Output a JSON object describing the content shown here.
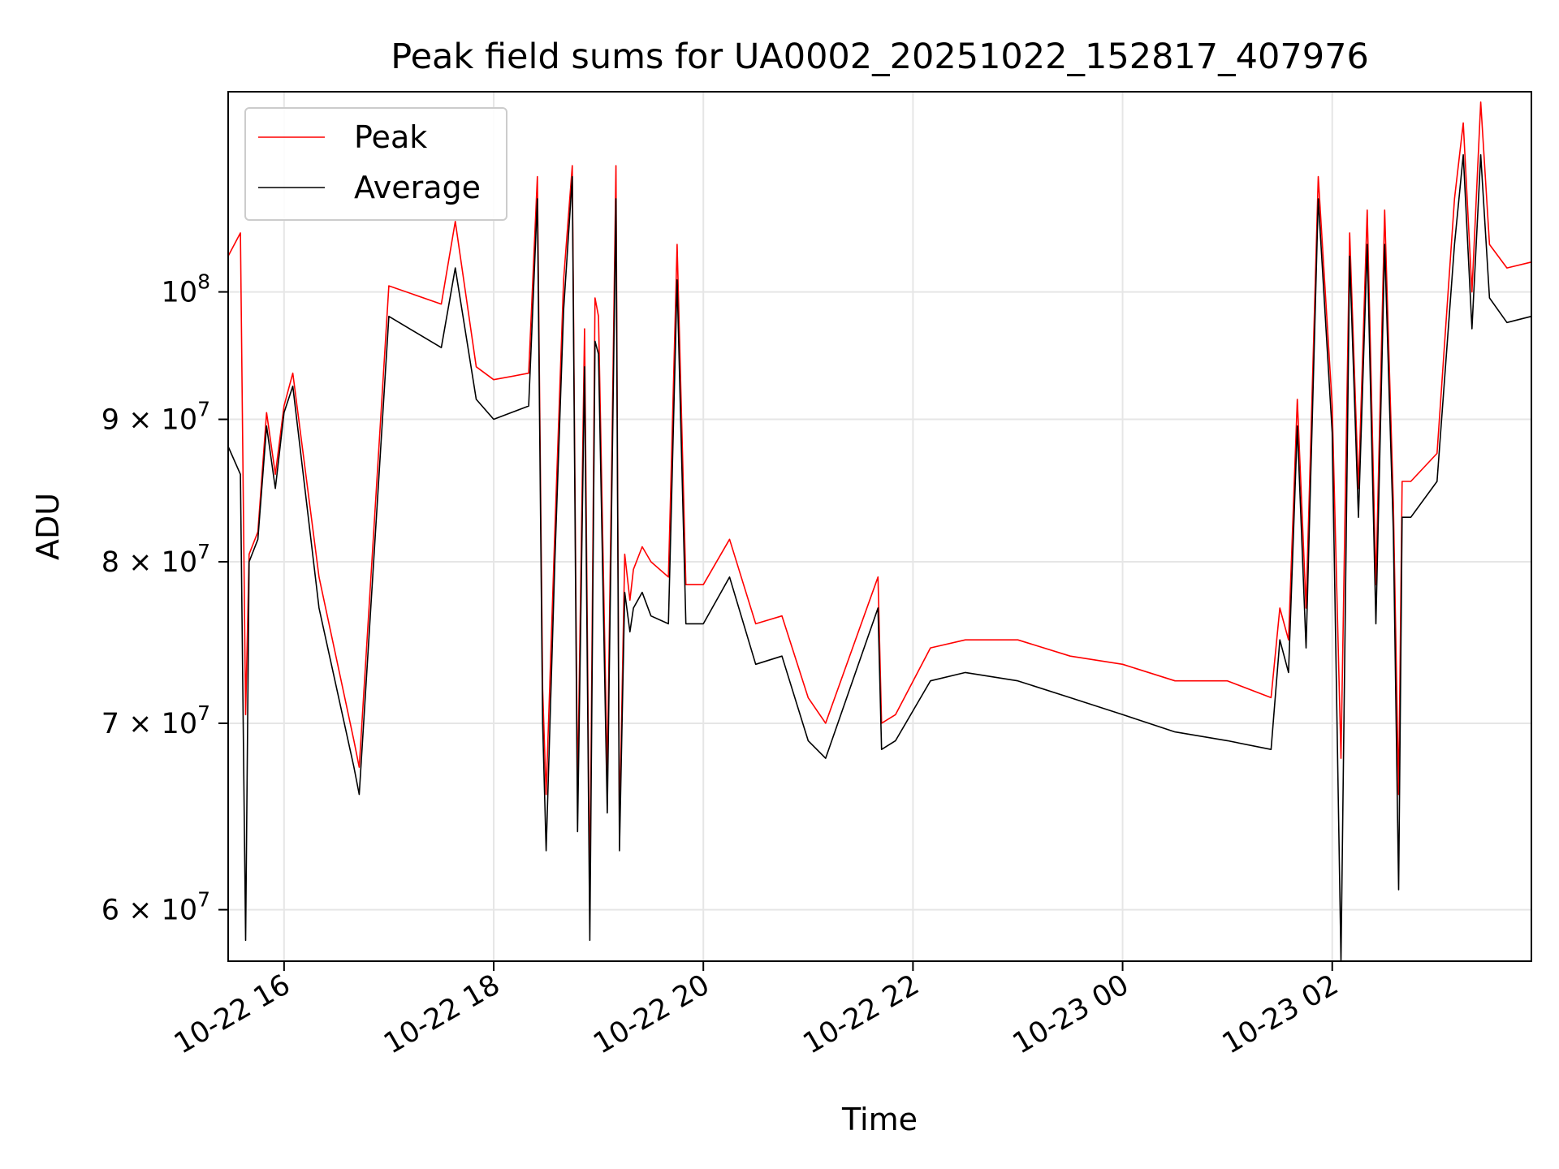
{
  "chart_data": {
    "type": "line",
    "title": "Peak field sums for UA0002_20251022_152817_407976",
    "xlabel": "Time",
    "ylabel": "ADU",
    "yscale": "log",
    "xlim": [
      "2025-10-22 15:28",
      "2025-10-23 03:54"
    ],
    "ylim": [
      57500000,
      118000000
    ],
    "grid": true,
    "legend_position": "top-left",
    "x_ticks": [
      "10-22 16",
      "10-22 18",
      "10-22 20",
      "10-22 22",
      "10-23 00",
      "10-23 02"
    ],
    "x_tick_times": [
      "2025-10-22 16:00",
      "2025-10-22 18:00",
      "2025-10-22 20:00",
      "2025-10-22 22:00",
      "2025-10-23 00:00",
      "2025-10-23 02:00"
    ],
    "y_ticks": [
      {
        "value": 60000000,
        "mantissa": "6",
        "exp": "7"
      },
      {
        "value": 70000000,
        "mantissa": "7",
        "exp": "7"
      },
      {
        "value": 80000000,
        "mantissa": "8",
        "exp": "7"
      },
      {
        "value": 90000000,
        "mantissa": "9",
        "exp": "7"
      },
      {
        "value": 100000000,
        "mantissa": "",
        "exp": "8"
      }
    ],
    "series": [
      {
        "name": "Peak",
        "color": "#ff0000",
        "x": [
          "2025-10-22 15:28",
          "2025-10-22 15:35",
          "2025-10-22 15:38",
          "2025-10-22 15:40",
          "2025-10-22 15:45",
          "2025-10-22 15:50",
          "2025-10-22 15:55",
          "2025-10-22 16:00",
          "2025-10-22 16:05",
          "2025-10-22 16:20",
          "2025-10-22 16:40",
          "2025-10-22 16:43",
          "2025-10-22 17:00",
          "2025-10-22 17:30",
          "2025-10-22 17:38",
          "2025-10-22 17:50",
          "2025-10-22 18:00",
          "2025-10-22 18:20",
          "2025-10-22 18:25",
          "2025-10-22 18:28",
          "2025-10-22 18:30",
          "2025-10-22 18:35",
          "2025-10-22 18:40",
          "2025-10-22 18:45",
          "2025-10-22 18:48",
          "2025-10-22 18:52",
          "2025-10-22 18:55",
          "2025-10-22 18:58",
          "2025-10-22 19:00",
          "2025-10-22 19:05",
          "2025-10-22 19:10",
          "2025-10-22 19:12",
          "2025-10-22 19:15",
          "2025-10-22 19:18",
          "2025-10-22 19:20",
          "2025-10-22 19:25",
          "2025-10-22 19:30",
          "2025-10-22 19:40",
          "2025-10-22 19:45",
          "2025-10-22 19:50",
          "2025-10-22 20:00",
          "2025-10-22 20:15",
          "2025-10-22 20:30",
          "2025-10-22 20:45",
          "2025-10-22 21:00",
          "2025-10-22 21:10",
          "2025-10-22 21:40",
          "2025-10-22 21:42",
          "2025-10-22 21:50",
          "2025-10-22 22:10",
          "2025-10-22 22:30",
          "2025-10-22 23:00",
          "2025-10-22 23:30",
          "2025-10-23 00:00",
          "2025-10-23 00:30",
          "2025-10-23 01:00",
          "2025-10-23 01:25",
          "2025-10-23 01:30",
          "2025-10-23 01:35",
          "2025-10-23 01:40",
          "2025-10-23 01:45",
          "2025-10-23 01:52",
          "2025-10-23 02:00",
          "2025-10-23 02:05",
          "2025-10-23 02:10",
          "2025-10-23 02:15",
          "2025-10-23 02:20",
          "2025-10-23 02:25",
          "2025-10-23 02:30",
          "2025-10-23 02:35",
          "2025-10-23 02:38",
          "2025-10-23 02:40",
          "2025-10-23 02:45",
          "2025-10-23 03:00",
          "2025-10-23 03:10",
          "2025-10-23 03:15",
          "2025-10-23 03:20",
          "2025-10-23 03:25",
          "2025-10-23 03:30",
          "2025-10-23 03:40",
          "2025-10-23 03:54"
        ],
        "y": [
          103000000,
          105000000,
          70500000,
          80500000,
          82000000,
          90500000,
          86000000,
          91000000,
          93500000,
          79000000,
          69000000,
          67500000,
          100500000,
          99000000,
          106000000,
          94000000,
          93000000,
          93500000,
          110000000,
          72000000,
          66000000,
          82000000,
          101000000,
          111000000,
          66000000,
          97000000,
          60500000,
          99500000,
          98000000,
          67000000,
          111000000,
          64000000,
          80500000,
          77500000,
          79500000,
          81000000,
          80000000,
          79000000,
          104000000,
          78500000,
          78500000,
          81500000,
          76000000,
          76500000,
          71500000,
          70000000,
          79000000,
          70000000,
          70500000,
          74500000,
          75000000,
          75000000,
          74000000,
          73500000,
          72500000,
          72500000,
          71500000,
          77000000,
          75000000,
          91500000,
          77000000,
          110000000,
          91000000,
          68000000,
          105000000,
          85000000,
          107000000,
          78500000,
          107000000,
          84000000,
          66000000,
          85500000,
          85500000,
          87500000,
          108000000,
          115000000,
          100000000,
          117000000,
          104000000,
          102000000,
          102500000
        ]
      },
      {
        "name": "Average",
        "color": "#000000",
        "x": [
          "2025-10-22 15:28",
          "2025-10-22 15:35",
          "2025-10-22 15:38",
          "2025-10-22 15:40",
          "2025-10-22 15:45",
          "2025-10-22 15:50",
          "2025-10-22 15:55",
          "2025-10-22 16:00",
          "2025-10-22 16:05",
          "2025-10-22 16:20",
          "2025-10-22 16:40",
          "2025-10-22 16:43",
          "2025-10-22 17:00",
          "2025-10-22 17:30",
          "2025-10-22 17:38",
          "2025-10-22 17:50",
          "2025-10-22 18:00",
          "2025-10-22 18:20",
          "2025-10-22 18:25",
          "2025-10-22 18:28",
          "2025-10-22 18:30",
          "2025-10-22 18:35",
          "2025-10-22 18:40",
          "2025-10-22 18:45",
          "2025-10-22 18:48",
          "2025-10-22 18:52",
          "2025-10-22 18:55",
          "2025-10-22 18:58",
          "2025-10-22 19:00",
          "2025-10-22 19:05",
          "2025-10-22 19:10",
          "2025-10-22 19:12",
          "2025-10-22 19:15",
          "2025-10-22 19:18",
          "2025-10-22 19:20",
          "2025-10-22 19:25",
          "2025-10-22 19:30",
          "2025-10-22 19:40",
          "2025-10-22 19:45",
          "2025-10-22 19:50",
          "2025-10-22 20:00",
          "2025-10-22 20:15",
          "2025-10-22 20:30",
          "2025-10-22 20:45",
          "2025-10-22 21:00",
          "2025-10-22 21:10",
          "2025-10-22 21:40",
          "2025-10-22 21:42",
          "2025-10-22 21:50",
          "2025-10-22 22:10",
          "2025-10-22 22:30",
          "2025-10-22 23:00",
          "2025-10-22 23:30",
          "2025-10-23 00:00",
          "2025-10-23 00:30",
          "2025-10-23 01:00",
          "2025-10-23 01:25",
          "2025-10-23 01:30",
          "2025-10-23 01:35",
          "2025-10-23 01:40",
          "2025-10-23 01:45",
          "2025-10-23 01:52",
          "2025-10-23 02:00",
          "2025-10-23 02:05",
          "2025-10-23 02:10",
          "2025-10-23 02:15",
          "2025-10-23 02:20",
          "2025-10-23 02:25",
          "2025-10-23 02:30",
          "2025-10-23 02:35",
          "2025-10-23 02:38",
          "2025-10-23 02:40",
          "2025-10-23 02:45",
          "2025-10-23 03:00",
          "2025-10-23 03:10",
          "2025-10-23 03:15",
          "2025-10-23 03:20",
          "2025-10-23 03:25",
          "2025-10-23 03:30",
          "2025-10-23 03:40",
          "2025-10-23 03:54"
        ],
        "y": [
          88000000,
          86000000,
          58500000,
          80000000,
          81500000,
          89500000,
          85000000,
          90500000,
          92500000,
          77000000,
          67500000,
          66000000,
          98000000,
          95500000,
          102000000,
          91500000,
          90000000,
          91000000,
          108000000,
          70000000,
          63000000,
          80000000,
          98500000,
          110000000,
          64000000,
          94000000,
          58500000,
          96000000,
          95000000,
          65000000,
          108000000,
          63000000,
          78000000,
          75500000,
          77000000,
          78000000,
          76500000,
          76000000,
          101000000,
          76000000,
          76000000,
          79000000,
          73500000,
          74000000,
          69000000,
          68000000,
          77000000,
          68500000,
          69000000,
          72500000,
          73000000,
          72500000,
          71500000,
          70500000,
          69500000,
          69000000,
          68500000,
          75000000,
          73000000,
          89500000,
          74500000,
          108000000,
          89000000,
          57500000,
          103000000,
          83000000,
          104000000,
          76000000,
          104000000,
          82000000,
          61000000,
          83000000,
          83000000,
          85500000,
          104000000,
          112000000,
          97000000,
          112000000,
          99500000,
          97500000,
          98000000
        ]
      }
    ]
  }
}
